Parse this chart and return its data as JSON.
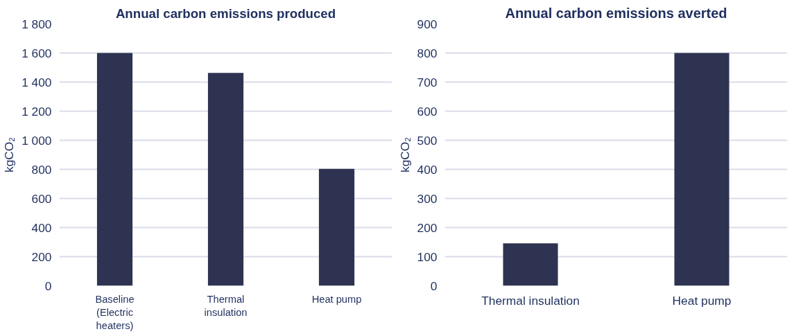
{
  "chart_data": [
    {
      "type": "bar",
      "title": "Annual carbon emissions produced",
      "ylabel": "kgCO₂",
      "categories": [
        "Baseline (Electric heaters)",
        "Thermal insulation",
        "Heat pump"
      ],
      "values": [
        1600,
        1463,
        803
      ],
      "color": "#2d3350",
      "ylim": [
        0,
        1800
      ],
      "yticks": [
        0,
        200,
        400,
        600,
        800,
        {
          "value": 1000,
          "label": "1 000"
        },
        {
          "value": 1200,
          "label": "1 200"
        },
        {
          "value": 1400,
          "label": "1 400"
        },
        {
          "value": 1600,
          "label": "1 600"
        },
        {
          "value": 1800,
          "label": "1 800"
        }
      ],
      "grid": "y"
    },
    {
      "type": "bar",
      "title": "Annual carbon emissions averted",
      "ylabel": "kgCO₂",
      "categories": [
        "Thermal insulation",
        "Heat pump"
      ],
      "values": [
        146,
        800
      ],
      "color": "#2d3350",
      "ylim": [
        0,
        900
      ],
      "yticks": [
        0,
        100,
        200,
        300,
        400,
        500,
        600,
        700,
        800,
        900
      ],
      "grid": "y"
    }
  ]
}
